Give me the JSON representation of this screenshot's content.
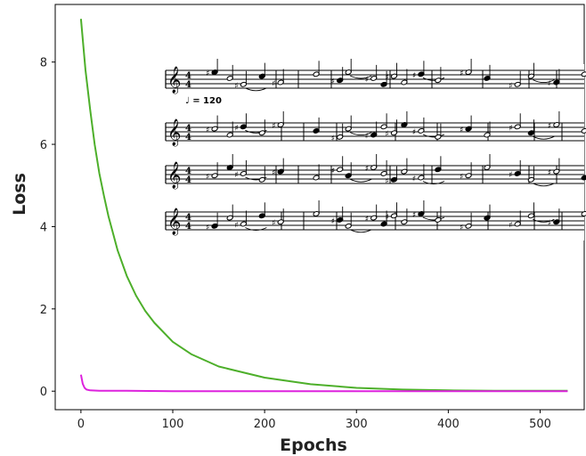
{
  "chart_data": {
    "type": "line",
    "title": "",
    "xlabel": "Epochs",
    "ylabel": "Loss",
    "xlim": [
      -28,
      548
    ],
    "ylim": [
      -0.45,
      9.4
    ],
    "xticks": [
      0,
      100,
      200,
      300,
      400,
      500
    ],
    "yticks": [
      0,
      2,
      4,
      6,
      8
    ],
    "grid": false,
    "legend": "none",
    "series": [
      {
        "color": "#4daf2a",
        "x": [
          0,
          5,
          10,
          15,
          20,
          25,
          30,
          40,
          50,
          60,
          70,
          80,
          100,
          120,
          150,
          200,
          250,
          300,
          350,
          400,
          450,
          500,
          530
        ],
        "values": [
          9.05,
          7.8,
          6.85,
          6.0,
          5.3,
          4.75,
          4.25,
          3.42,
          2.8,
          2.32,
          1.95,
          1.66,
          1.2,
          0.9,
          0.6,
          0.33,
          0.17,
          0.08,
          0.04,
          0.02,
          0.01,
          0.01,
          0.01
        ]
      },
      {
        "color": "#dd22dd",
        "x": [
          0,
          2,
          4,
          6,
          10,
          20,
          50,
          100,
          200,
          300,
          400,
          500,
          530
        ],
        "values": [
          0.4,
          0.18,
          0.08,
          0.04,
          0.02,
          0.01,
          0.01,
          0.0,
          0.0,
          0.0,
          0.0,
          0.0,
          0.0
        ]
      }
    ]
  },
  "inset": {
    "icon": "sheet-music-image",
    "tempo": "♩ = 120",
    "time_signature": [
      "4",
      "4"
    ],
    "staves": 4
  }
}
